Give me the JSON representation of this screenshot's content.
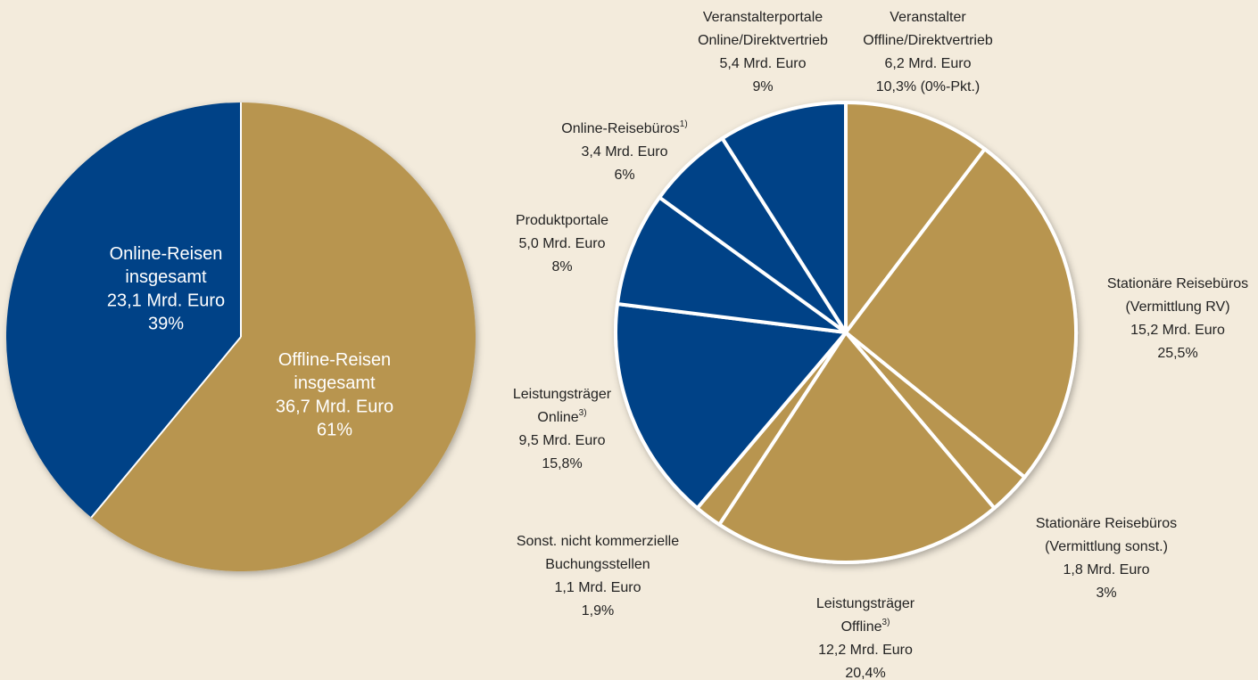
{
  "chart_data": [
    {
      "type": "pie",
      "categories": [
        [
          "Offline-Reisen",
          "insgesamt"
        ],
        [
          "Online-Reisen",
          "insgesamt"
        ]
      ],
      "amount_labels": [
        "36,7 Mrd. Euro",
        "23,1 Mrd. Euro"
      ],
      "values": [
        61,
        39
      ],
      "value_labels": [
        "61%",
        "39%"
      ],
      "colors": [
        "#b8954f",
        "#004287"
      ]
    },
    {
      "type": "pie",
      "categories": [
        [
          "Veranstalter",
          "Offline/Direktvertrieb"
        ],
        [
          "Stationäre Reisebüros",
          "(Vermittlung RV)"
        ],
        [
          "Stationäre Reisebüros",
          "(Vermittlung sonst.)"
        ],
        [
          "Leistungsträger",
          "Offline"
        ],
        [
          "Sonst. nicht kommerzielle",
          "Buchungsstellen"
        ],
        [
          "Leistungsträger",
          "Online"
        ],
        [
          "Produktportale"
        ],
        [
          "Online-Reisebüros"
        ],
        [
          "Veranstalterportale",
          "Online/Direktvertrieb"
        ]
      ],
      "footnotes": [
        null,
        null,
        null,
        "3)",
        null,
        "3)",
        null,
        "1)",
        null
      ],
      "amount_labels": [
        "6,2 Mrd. Euro",
        "15,2 Mrd. Euro",
        "1,8 Mrd. Euro",
        "12,2 Mrd. Euro",
        "1,1 Mrd. Euro",
        "9,5 Mrd. Euro",
        "5,0 Mrd. Euro",
        "3,4 Mrd. Euro",
        "5,4 Mrd. Euro"
      ],
      "values": [
        10.3,
        25.5,
        3,
        20.4,
        1.9,
        15.8,
        8,
        6,
        9
      ],
      "value_labels": [
        "10,3% (0%-Pkt.)",
        "25,5%",
        "3%",
        "20,4%",
        "1,9%",
        "15,8%",
        "8%",
        "6%",
        "9%"
      ],
      "colors": [
        "#b8954f",
        "#b8954f",
        "#b8954f",
        "#b8954f",
        "#b8954f",
        "#004287",
        "#004287",
        "#004287",
        "#004287"
      ]
    }
  ]
}
